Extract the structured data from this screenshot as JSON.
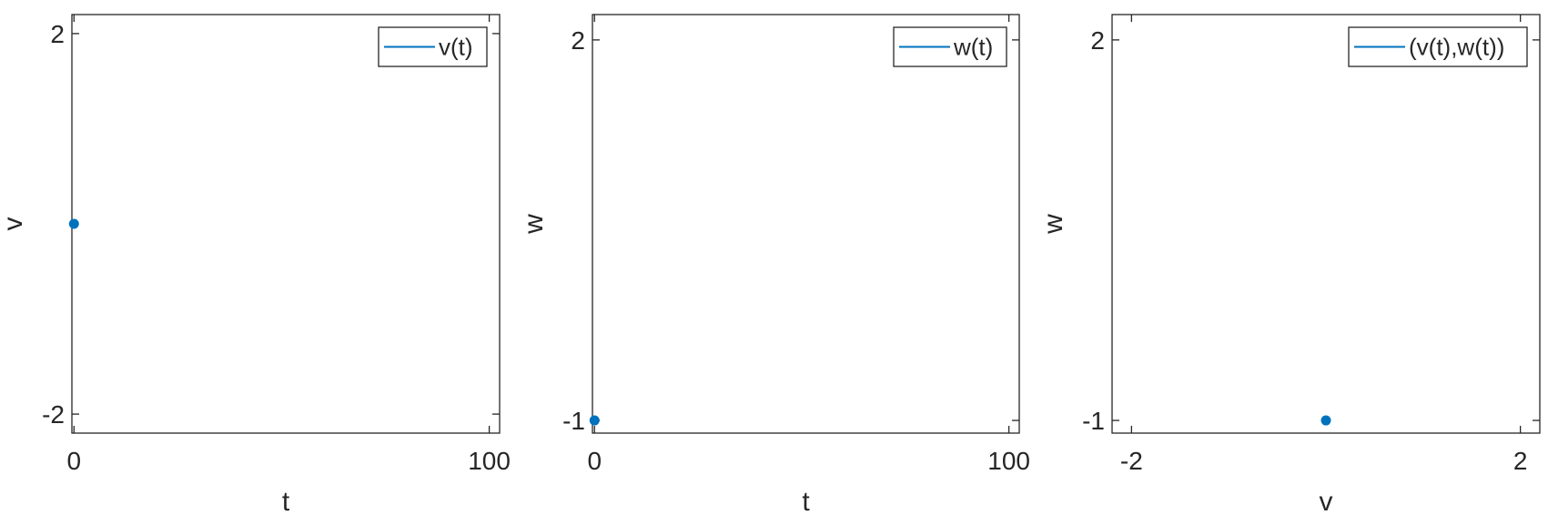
{
  "chart_data": [
    {
      "type": "line",
      "xlabel": "t",
      "ylabel": "v",
      "xlim": [
        -0.5,
        102.5
      ],
      "ylim": [
        -2.2,
        2.2
      ],
      "xticks": [
        0,
        100
      ],
      "xtick_labels": [
        "0",
        "100"
      ],
      "yticks": [
        -2,
        2
      ],
      "ytick_labels": [
        "-2",
        "2"
      ],
      "grid": false,
      "legend_position": "top-right",
      "series": [
        {
          "name": "v(t)",
          "color": "#0072BD",
          "points": [
            [
              0,
              0
            ]
          ]
        }
      ]
    },
    {
      "type": "line",
      "xlabel": "t",
      "ylabel": "w",
      "xlim": [
        -0.5,
        102.5
      ],
      "ylim": [
        -1.1,
        2.2
      ],
      "xticks": [
        0,
        100
      ],
      "xtick_labels": [
        "0",
        "100"
      ],
      "yticks": [
        -1,
        2
      ],
      "ytick_labels": [
        "-1",
        "2"
      ],
      "grid": false,
      "legend_position": "top-right",
      "series": [
        {
          "name": "w(t)",
          "color": "#0072BD",
          "points": [
            [
              0,
              -1
            ]
          ]
        }
      ]
    },
    {
      "type": "line",
      "xlabel": "v",
      "ylabel": "w",
      "xlim": [
        -2.2,
        2.2
      ],
      "ylim": [
        -1.1,
        2.2
      ],
      "xticks": [
        -2,
        2
      ],
      "xtick_labels": [
        "-2",
        "2"
      ],
      "yticks": [
        -1,
        2
      ],
      "ytick_labels": [
        "-1",
        "2"
      ],
      "grid": false,
      "legend_position": "top-right",
      "series": [
        {
          "name": "(v(t),w(t))",
          "color": "#0072BD",
          "points": [
            [
              0,
              -1
            ]
          ]
        }
      ]
    }
  ]
}
